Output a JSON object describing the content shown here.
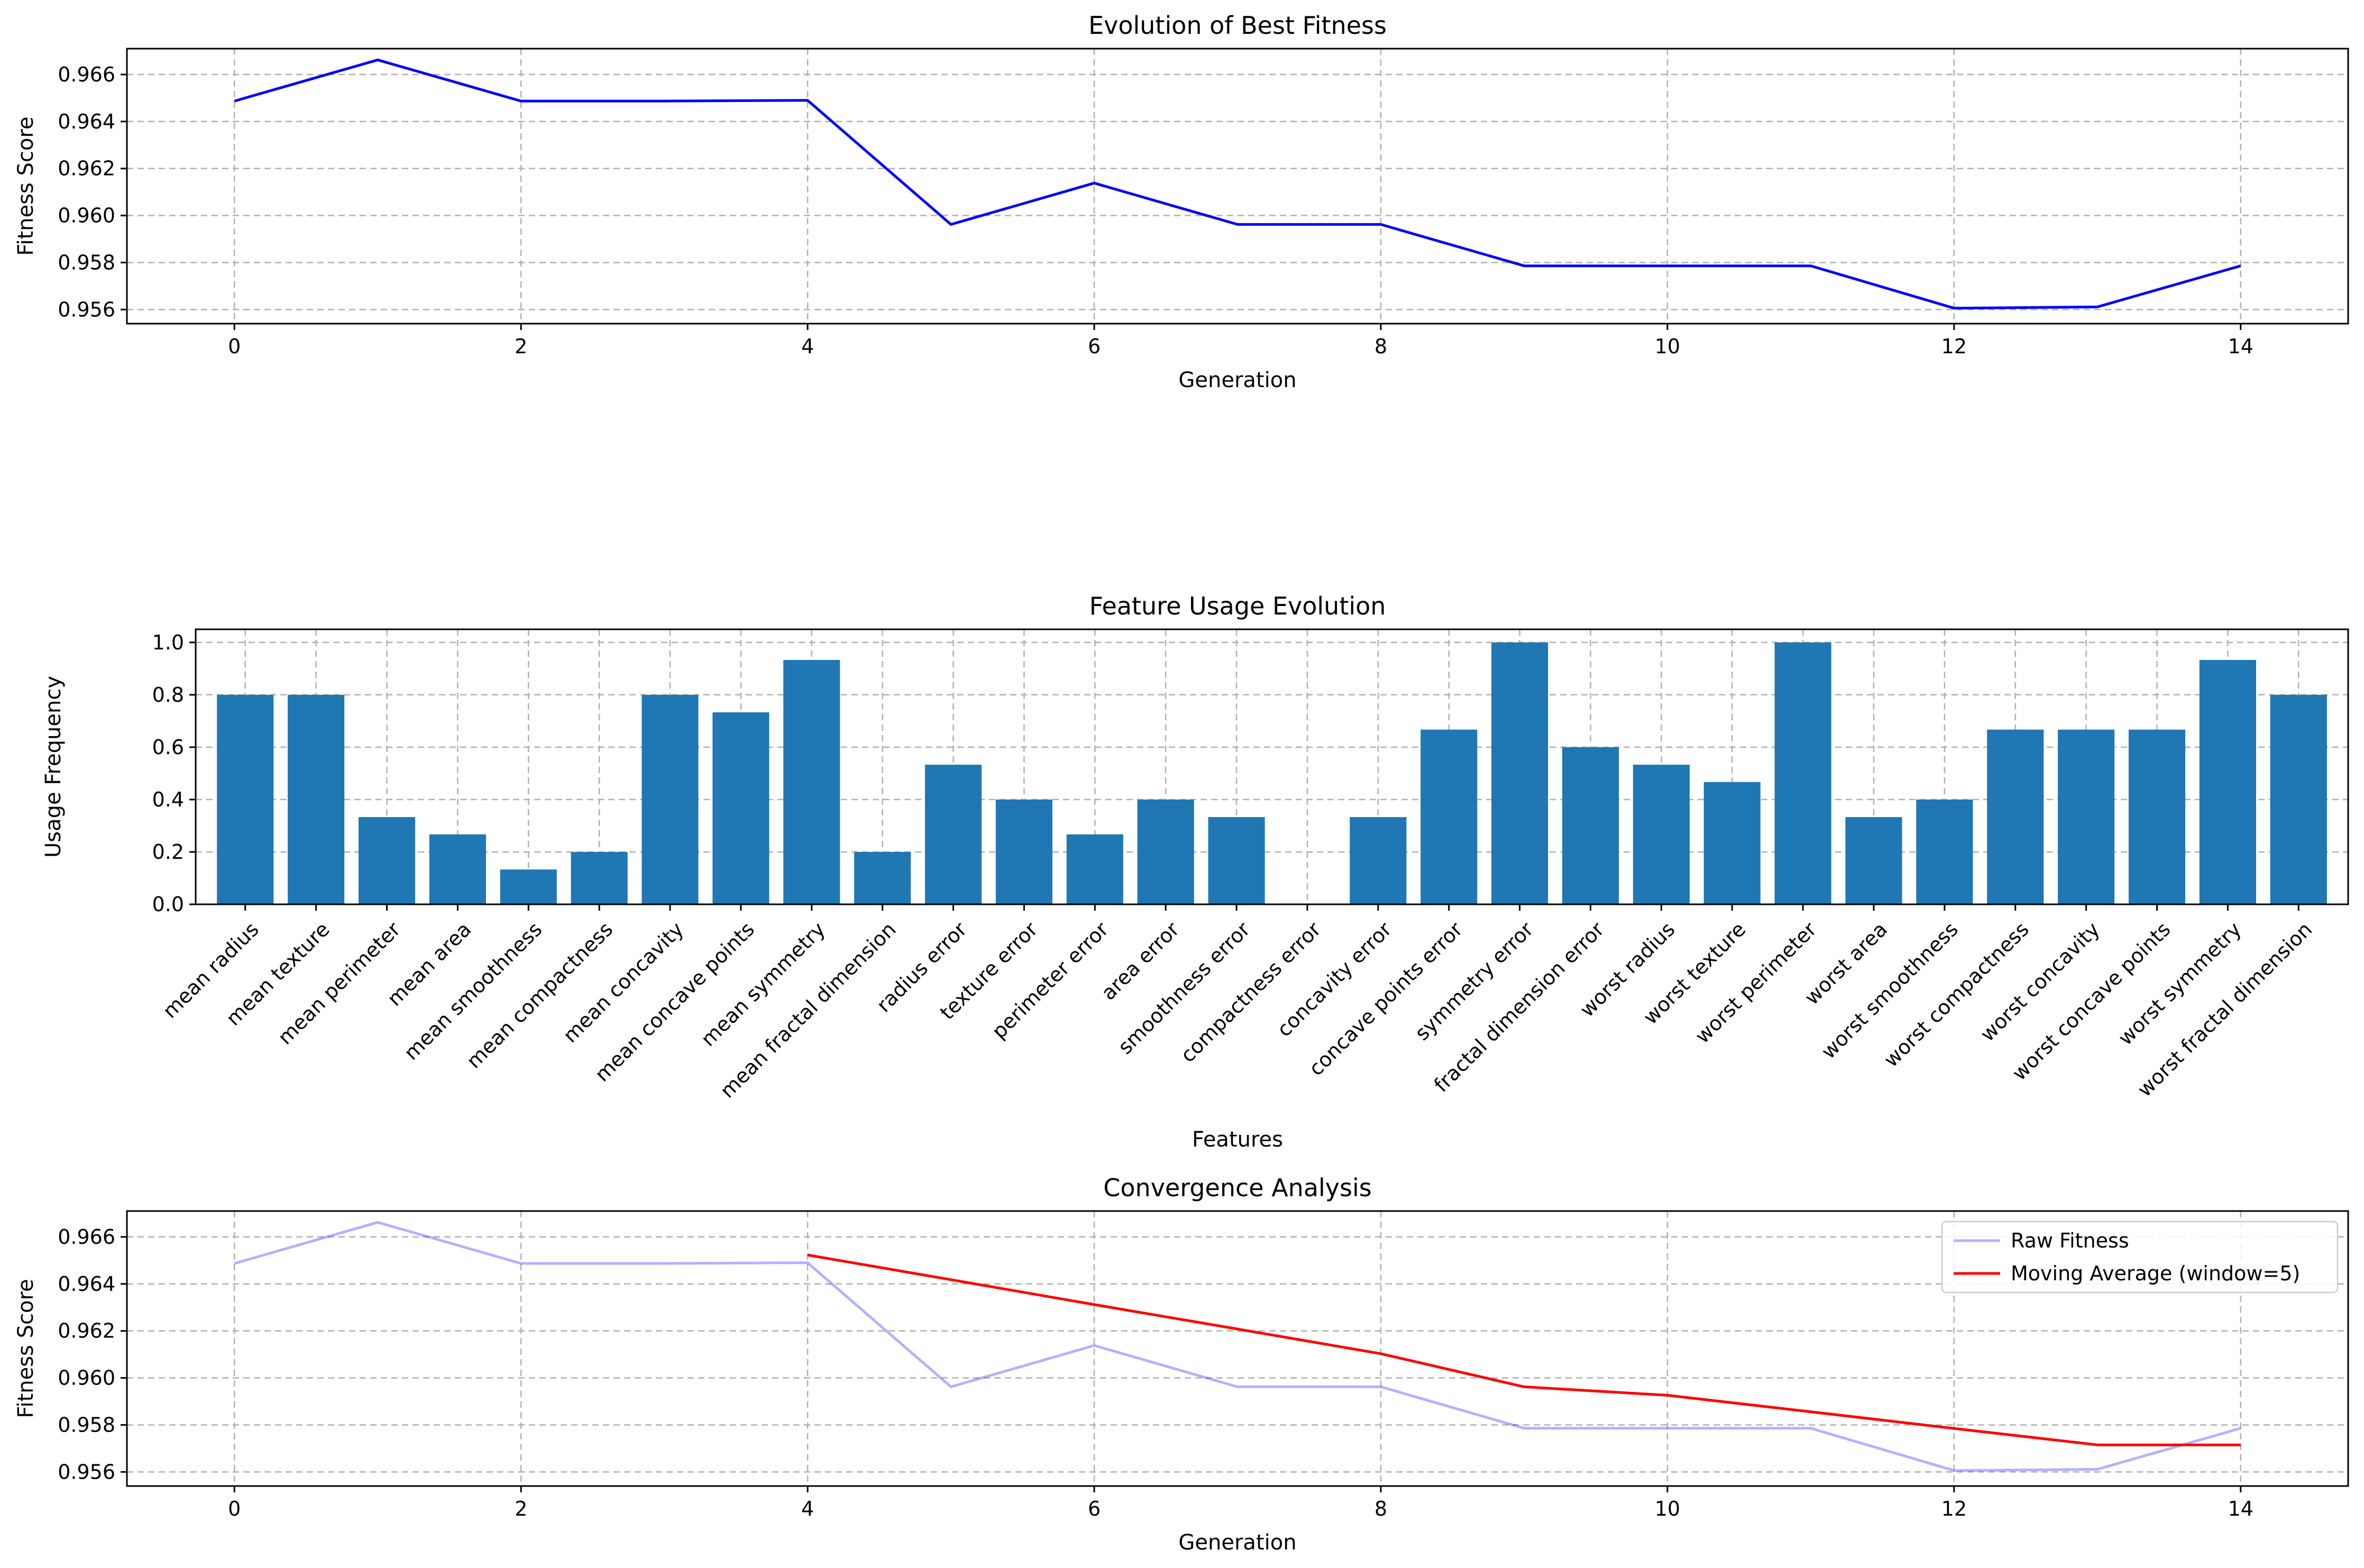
{
  "chart_data": [
    {
      "type": "line",
      "title": "Evolution of Best Fitness",
      "xlabel": "Generation",
      "ylabel": "Fitness Score",
      "xlim": [
        -0.75,
        14.75
      ],
      "ylim": [
        0.9554,
        0.9671
      ],
      "xticks": [
        0,
        2,
        4,
        6,
        8,
        10,
        12,
        14
      ],
      "yticks": [
        0.956,
        0.958,
        0.96,
        0.962,
        0.964,
        0.966
      ],
      "grid": true,
      "series": [
        {
          "color": "#0000ff",
          "x": [
            0,
            1,
            2,
            3,
            4,
            5,
            6,
            7,
            8,
            9,
            10,
            11,
            12,
            13,
            14
          ],
          "y": [
            0.96487,
            0.96662,
            0.96487,
            0.96487,
            0.9649,
            0.95962,
            0.96138,
            0.95962,
            0.95962,
            0.95786,
            0.95786,
            0.95786,
            0.95606,
            0.95611,
            0.95786
          ]
        }
      ]
    },
    {
      "type": "bar",
      "title": "Feature Usage Evolution",
      "xlabel": "Features",
      "ylabel": "Usage Frequency",
      "ylim": [
        0,
        1.05
      ],
      "yticks": [
        0.0,
        0.2,
        0.4,
        0.6,
        0.8,
        1.0
      ],
      "grid": true,
      "color": "#1f77b4",
      "categories": [
        "mean radius",
        "mean texture",
        "mean perimeter",
        "mean area",
        "mean smoothness",
        "mean compactness",
        "mean concavity",
        "mean concave points",
        "mean symmetry",
        "mean fractal dimension",
        "radius error",
        "texture error",
        "perimeter error",
        "area error",
        "smoothness error",
        "compactness error",
        "concavity error",
        "concave points error",
        "symmetry error",
        "fractal dimension error",
        "worst radius",
        "worst texture",
        "worst perimeter",
        "worst area",
        "worst smoothness",
        "worst compactness",
        "worst concavity",
        "worst concave points",
        "worst symmetry",
        "worst fractal dimension"
      ],
      "values": [
        0.8,
        0.8,
        0.333,
        0.267,
        0.133,
        0.2,
        0.8,
        0.733,
        0.933,
        0.2,
        0.533,
        0.4,
        0.267,
        0.4,
        0.333,
        0.0,
        0.333,
        0.667,
        1.0,
        0.6,
        0.533,
        0.467,
        1.0,
        0.333,
        0.4,
        0.667,
        0.667,
        0.667,
        0.933,
        0.8
      ]
    },
    {
      "type": "line",
      "title": "Convergence Analysis",
      "xlabel": "Generation",
      "ylabel": "Fitness Score",
      "xlim": [
        -0.75,
        14.75
      ],
      "ylim": [
        0.9554,
        0.9671
      ],
      "xticks": [
        0,
        2,
        4,
        6,
        8,
        10,
        12,
        14
      ],
      "yticks": [
        0.956,
        0.958,
        0.96,
        0.962,
        0.964,
        0.966
      ],
      "grid": true,
      "legend": "top-right",
      "series": [
        {
          "name": "Raw Fitness",
          "color": "#0000ff",
          "opacity": 0.3,
          "x": [
            0,
            1,
            2,
            3,
            4,
            5,
            6,
            7,
            8,
            9,
            10,
            11,
            12,
            13,
            14
          ],
          "y": [
            0.96487,
            0.96662,
            0.96487,
            0.96487,
            0.9649,
            0.95962,
            0.96138,
            0.95962,
            0.95962,
            0.95786,
            0.95786,
            0.95786,
            0.95606,
            0.95611,
            0.95786
          ]
        },
        {
          "name": "Moving Average (window=5)",
          "color": "#ff0000",
          "opacity": 1,
          "x": [
            4,
            5,
            6,
            7,
            8,
            9,
            10,
            11,
            12,
            13,
            14
          ],
          "y": [
            0.96523,
            0.96418,
            0.96312,
            0.96208,
            0.96103,
            0.95962,
            0.95926,
            0.95856,
            0.95785,
            0.95715,
            0.95715
          ]
        }
      ]
    }
  ]
}
